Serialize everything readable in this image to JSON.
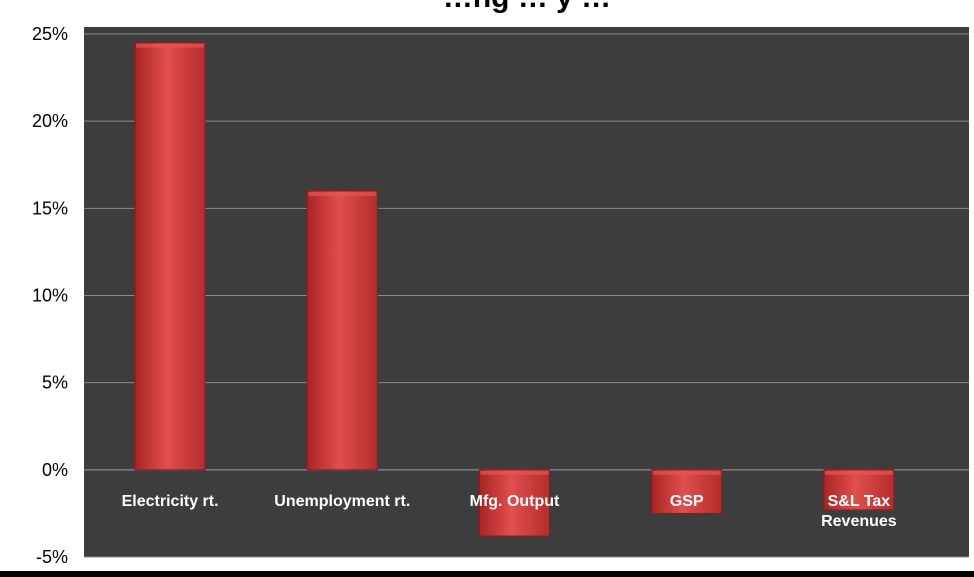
{
  "chart_data": {
    "type": "bar",
    "title": "…ng … y …",
    "categories": [
      [
        "Electricity rt."
      ],
      [
        "Unemployment rt."
      ],
      [
        "Mfg. Output"
      ],
      [
        "GSP"
      ],
      [
        "S&L Tax",
        "Revenues"
      ]
    ],
    "values": [
      24.5,
      16.0,
      -3.8,
      -2.5,
      -2.3
    ],
    "ylim": [
      -5,
      25
    ],
    "yticks": [
      25,
      20,
      15,
      10,
      5,
      0,
      -5
    ],
    "ytick_labels": [
      "25%",
      "20%",
      "15%",
      "10%",
      "5%",
      "0%",
      "-5%"
    ],
    "xlabel": "",
    "ylabel": "",
    "grid": true,
    "legend": "none",
    "colors": {
      "page_background": "#000000",
      "plot_background": "#3d3d3d",
      "gridline": "#8a8a8a",
      "bar_fill": "#d33a3a",
      "bar_highlight": "#e45656",
      "bar_edge": "#8e1a1a",
      "category_label": "#ffffff",
      "tick_label": "#000000"
    }
  }
}
